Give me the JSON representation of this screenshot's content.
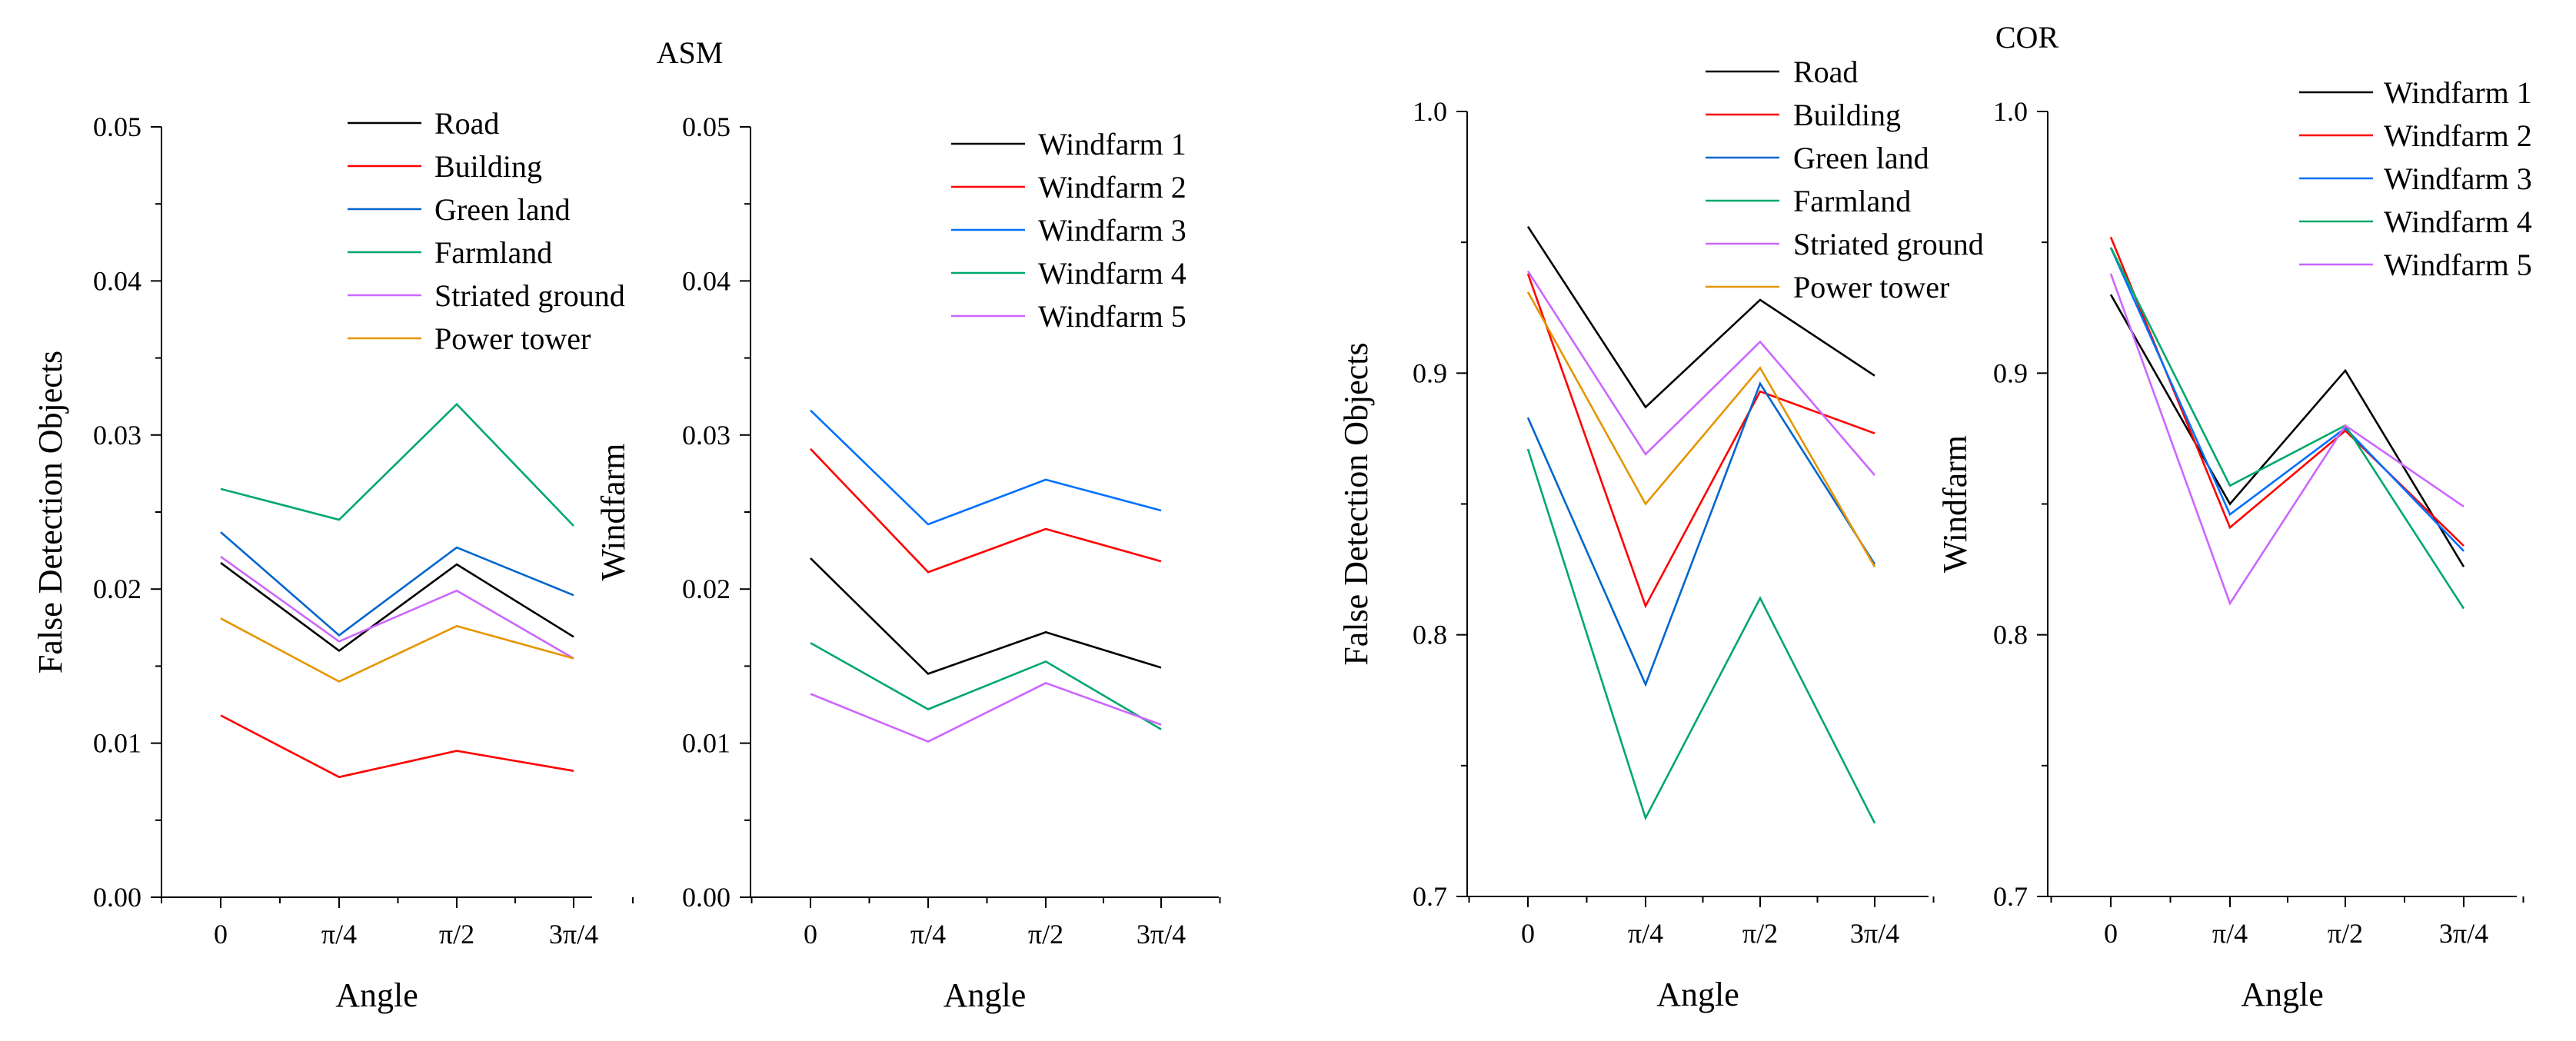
{
  "colors": {
    "Road": "#000000",
    "Building": "#ff0000",
    "Green land": "#0066cc",
    "Farmland": "#00a86b",
    "Striated ground": "#cc66ff",
    "Power tower": "#e69500",
    "Windfarm 1": "#000000",
    "Windfarm 2": "#ff0000",
    "Windfarm 3": "#0070ff",
    "Windfarm 4": "#00a86b",
    "Windfarm 5": "#cc66ff"
  },
  "group_titles": [
    "ASM",
    "COR"
  ],
  "chart_data": [
    {
      "type": "line",
      "group": "ASM",
      "title": "ASM",
      "xlabel": "Angle",
      "ylabel": "False Detection Objects",
      "categories": [
        "0",
        "π/4",
        "π/2",
        "3π/4"
      ],
      "ylim": [
        0,
        0.05
      ],
      "yticks": [
        "0.00",
        "0.01",
        "0.02",
        "0.03",
        "0.04",
        "0.05"
      ],
      "series": [
        {
          "name": "Road",
          "values": [
            0.0217,
            0.016,
            0.0216,
            0.0169
          ]
        },
        {
          "name": "Building",
          "values": [
            0.0118,
            0.0078,
            0.0095,
            0.0082
          ]
        },
        {
          "name": "Green land",
          "values": [
            0.0237,
            0.017,
            0.0227,
            0.0196
          ]
        },
        {
          "name": "Farmland",
          "values": [
            0.0265,
            0.0245,
            0.032,
            0.0241
          ]
        },
        {
          "name": "Striated ground",
          "values": [
            0.0221,
            0.0166,
            0.0199,
            0.0155
          ]
        },
        {
          "name": "Power tower",
          "values": [
            0.0181,
            0.014,
            0.0176,
            0.0155
          ]
        }
      ]
    },
    {
      "type": "line",
      "group": "ASM",
      "title": "",
      "xlabel": "Angle",
      "ylabel": "Windfarm",
      "categories": [
        "0",
        "π/4",
        "π/2",
        "3π/4"
      ],
      "ylim": [
        0,
        0.05
      ],
      "yticks": [
        "0.00",
        "0.01",
        "0.02",
        "0.03",
        "0.04",
        "0.05"
      ],
      "series": [
        {
          "name": "Windfarm 1",
          "values": [
            0.022,
            0.0145,
            0.0172,
            0.0149
          ]
        },
        {
          "name": "Windfarm 2",
          "values": [
            0.0291,
            0.0211,
            0.0239,
            0.0218
          ]
        },
        {
          "name": "Windfarm 3",
          "values": [
            0.0316,
            0.0242,
            0.0271,
            0.0251
          ]
        },
        {
          "name": "Windfarm 4",
          "values": [
            0.0165,
            0.0122,
            0.0153,
            0.0109
          ]
        },
        {
          "name": "Windfarm 5",
          "values": [
            0.0132,
            0.0101,
            0.0139,
            0.0112
          ]
        }
      ]
    },
    {
      "type": "line",
      "group": "COR",
      "title": "COR",
      "xlabel": "Angle",
      "ylabel": "False Detection Objects",
      "categories": [
        "0",
        "π/4",
        "π/2",
        "3π/4"
      ],
      "ylim": [
        0.7,
        1.0
      ],
      "yticks": [
        "0.7",
        "0.8",
        "0.9",
        "1.0"
      ],
      "series": [
        {
          "name": "Road",
          "values": [
            0.956,
            0.887,
            0.928,
            0.899
          ]
        },
        {
          "name": "Building",
          "values": [
            0.938,
            0.811,
            0.893,
            0.877
          ]
        },
        {
          "name": "Green land",
          "values": [
            0.883,
            0.781,
            0.896,
            0.827
          ]
        },
        {
          "name": "Farmland",
          "values": [
            0.871,
            0.73,
            0.814,
            0.728
          ]
        },
        {
          "name": "Striated ground",
          "values": [
            0.939,
            0.869,
            0.912,
            0.861
          ]
        },
        {
          "name": "Power tower",
          "values": [
            0.931,
            0.85,
            0.902,
            0.826
          ]
        }
      ]
    },
    {
      "type": "line",
      "group": "COR",
      "title": "",
      "xlabel": "Angle",
      "ylabel": "Windfarm",
      "categories": [
        "0",
        "π/4",
        "π/2",
        "3π/4"
      ],
      "ylim": [
        0.7,
        1.0
      ],
      "yticks": [
        "0.7",
        "0.8",
        "0.9",
        "1.0"
      ],
      "series": [
        {
          "name": "Windfarm 1",
          "values": [
            0.93,
            0.85,
            0.901,
            0.826
          ]
        },
        {
          "name": "Windfarm 2",
          "values": [
            0.952,
            0.841,
            0.878,
            0.834
          ]
        },
        {
          "name": "Windfarm 3",
          "values": [
            0.948,
            0.846,
            0.879,
            0.832
          ]
        },
        {
          "name": "Windfarm 4",
          "values": [
            0.948,
            0.857,
            0.88,
            0.81
          ]
        },
        {
          "name": "Windfarm 5",
          "values": [
            0.938,
            0.812,
            0.88,
            0.849
          ]
        }
      ]
    }
  ]
}
